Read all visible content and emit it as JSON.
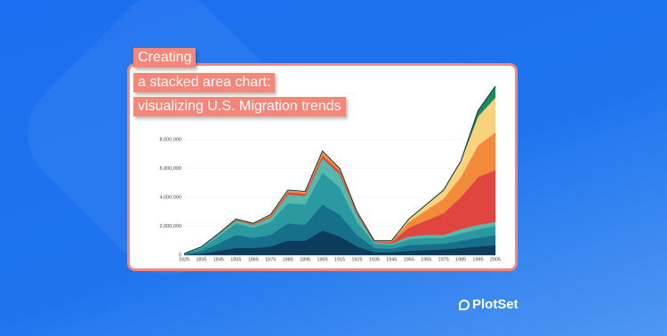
{
  "header": {
    "title_lines": [
      "Creating",
      "a stacked area chart:",
      "visualizing U.S. Migration trends"
    ]
  },
  "brand": "PlotSet",
  "chart_data": {
    "type": "stacked-area",
    "x": [
      1825,
      1835,
      1845,
      1855,
      1865,
      1875,
      1885,
      1895,
      1905,
      1915,
      1925,
      1935,
      1945,
      1955,
      1965,
      1975,
      1985,
      1995,
      2005
    ],
    "xlim": [
      1825,
      2005
    ],
    "xticks": [
      1825,
      1835,
      1845,
      1855,
      1865,
      1875,
      1885,
      1895,
      1905,
      1915,
      1925,
      1935,
      1945,
      1955,
      1965,
      1975,
      1985,
      1995,
      2005
    ],
    "ylim": [
      0,
      12000000
    ],
    "yticks": [
      0,
      {
        "value": 2000000,
        "label": "2,000,000"
      },
      {
        "value": 4000000,
        "label": "4,000,000"
      },
      {
        "value": 6000000,
        "label": "6,000,000"
      },
      {
        "value": 8000000,
        "label": "8,000,000"
      }
    ],
    "grid": true,
    "series": [
      {
        "color": "#0d3b5c",
        "values": [
          20000,
          100000,
          300000,
          500000,
          500000,
          600000,
          1000000,
          1000000,
          1700000,
          1300000,
          600000,
          200000,
          200000,
          300000,
          350000,
          400000,
          500000,
          600000,
          700000
        ]
      },
      {
        "color": "#17708a",
        "values": [
          30000,
          200000,
          500000,
          900000,
          700000,
          800000,
          1200000,
          1100000,
          1800000,
          1500000,
          800000,
          300000,
          250000,
          400000,
          400000,
          400000,
          500000,
          600000,
          700000
        ]
      },
      {
        "color": "#2a9aa0",
        "values": [
          30000,
          200000,
          500000,
          800000,
          700000,
          900000,
          1400000,
          1400000,
          2200000,
          1900000,
          900000,
          300000,
          250000,
          400000,
          450000,
          400000,
          500000,
          600000,
          600000
        ]
      },
      {
        "color": "#57b8ad",
        "values": [
          20000,
          80000,
          150000,
          200000,
          200000,
          300000,
          600000,
          600000,
          1000000,
          900000,
          500000,
          100000,
          100000,
          200000,
          200000,
          200000,
          300000,
          300000,
          300000
        ]
      },
      {
        "color": "#e0463f",
        "values": [
          0,
          0,
          20000,
          50000,
          50000,
          100000,
          150000,
          150000,
          200000,
          200000,
          100000,
          50000,
          100000,
          600000,
          1000000,
          1500000,
          2200000,
          3300000,
          3600000
        ]
      },
      {
        "color": "#f28a3c",
        "values": [
          0,
          0,
          20000,
          30000,
          30000,
          50000,
          100000,
          100000,
          200000,
          150000,
          80000,
          30000,
          70000,
          400000,
          700000,
          1000000,
          1400000,
          2200000,
          2600000
        ]
      },
      {
        "color": "#f9d27e",
        "values": [
          0,
          0,
          10000,
          20000,
          20000,
          50000,
          50000,
          50000,
          100000,
          50000,
          20000,
          20000,
          30000,
          200000,
          400000,
          600000,
          1100000,
          2000000,
          2400000
        ]
      },
      {
        "color": "#1c8a5c",
        "values": [
          0,
          0,
          0,
          0,
          0,
          0,
          0,
          0,
          0,
          0,
          0,
          0,
          0,
          0,
          0,
          0,
          0,
          400000,
          800000
        ]
      }
    ]
  }
}
